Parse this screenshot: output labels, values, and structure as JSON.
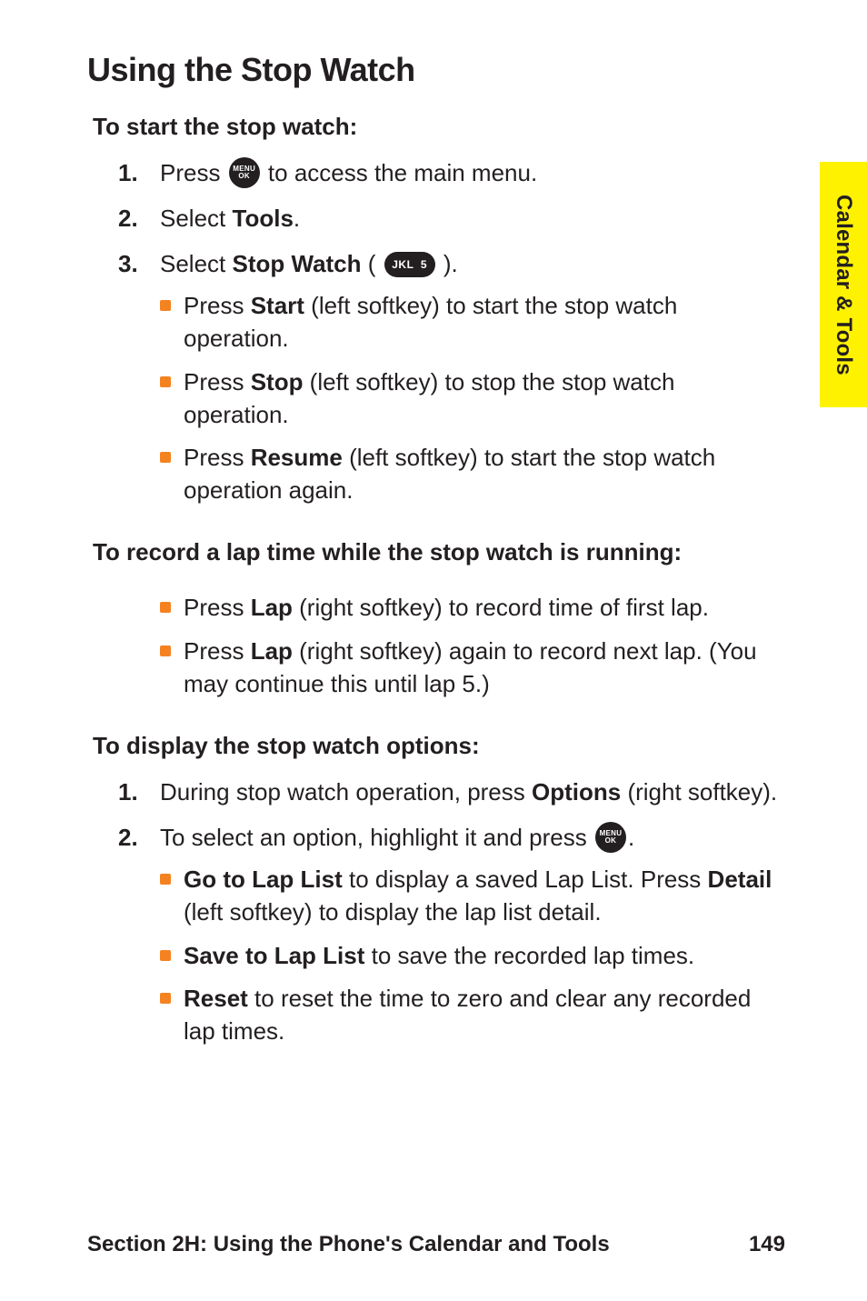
{
  "colors": {
    "text": "#231f20",
    "accent_orange": "#f58220",
    "tab_yellow": "#fff200",
    "page_bg": "#ffffff"
  },
  "heading": "Using the Stop Watch",
  "side_tab": "Calendar & Tools",
  "sections": [
    {
      "lead": "To start the stop watch:",
      "items": [
        {
          "num": "1.",
          "html": "Press {MENU} to access the main menu."
        },
        {
          "num": "2.",
          "html": "Select <b>Tools</b>."
        },
        {
          "num": "3.",
          "html": "Select <b>Stop Watch</b> ( {KEY5} ).",
          "sub": [
            "Press <b>Start</b> (left softkey) to start the stop watch operation.",
            "Press <b>Stop</b> (left softkey) to stop the stop watch operation.",
            "Press <b>Resume</b> (left softkey) to start the stop watch operation again."
          ]
        }
      ]
    },
    {
      "lead": "To record a lap time while the stop watch is running:",
      "items": [
        {
          "num": "",
          "html": "",
          "sub": [
            "Press <b>Lap</b> (right softkey) to record time of first lap.",
            "Press <b>Lap</b> (right softkey) again to record next lap. (You may continue this until lap 5.)"
          ]
        }
      ]
    },
    {
      "lead": "To display the stop watch options:",
      "items": [
        {
          "num": "1.",
          "html": "During stop watch operation, press <b>Options</b> (right softkey)."
        },
        {
          "num": "2.",
          "html": "To select an option, highlight it and press {MENU}.",
          "sub": [
            "<b>Go to Lap List</b> to display a saved Lap List. Press <b>Detail</b> (left softkey) to display the lap list detail.",
            "<b>Save to Lap List</b> to save the recorded lap times.",
            "<b>Reset</b> to reset the time to zero and clear any recorded lap times."
          ]
        }
      ]
    }
  ],
  "footer": {
    "section": "Section 2H: Using the Phone's Calendar and Tools",
    "page": "149"
  },
  "icons": {
    "menu_label": "MENU\nOK",
    "key5_label": "JKL 5"
  }
}
